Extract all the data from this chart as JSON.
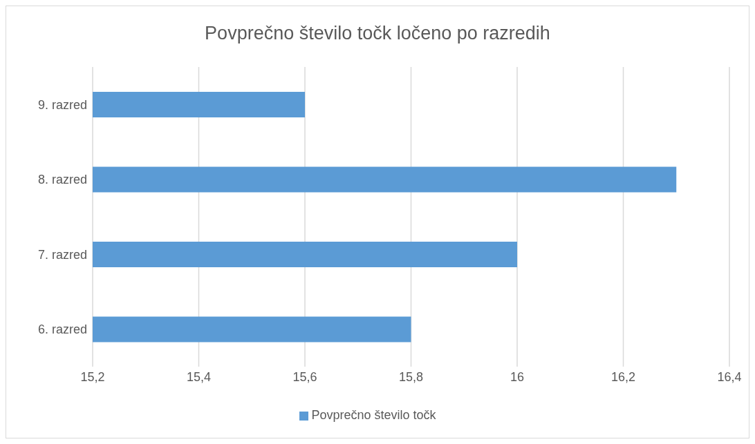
{
  "chart_data": {
    "type": "bar",
    "orientation": "horizontal",
    "title": "Povprečno število točk ločeno po razredih",
    "categories": [
      "9. razred",
      "8. razred",
      "7. razred",
      "6. razred"
    ],
    "series": [
      {
        "name": "Povprečno število točk",
        "color": "#5b9bd5",
        "values": [
          15.6,
          16.3,
          16.0,
          15.8
        ]
      }
    ],
    "xlim": [
      15.2,
      16.4
    ],
    "xticks": [
      {
        "value": 15.2,
        "label": "15,2"
      },
      {
        "value": 15.4,
        "label": "15,4"
      },
      {
        "value": 15.6,
        "label": "15,6"
      },
      {
        "value": 15.8,
        "label": "15,8"
      },
      16,
      {
        "value": 16.2,
        "label": "16,2"
      },
      {
        "value": 16.4,
        "label": "16,4"
      }
    ],
    "grid": "x",
    "legend": "bottom"
  }
}
